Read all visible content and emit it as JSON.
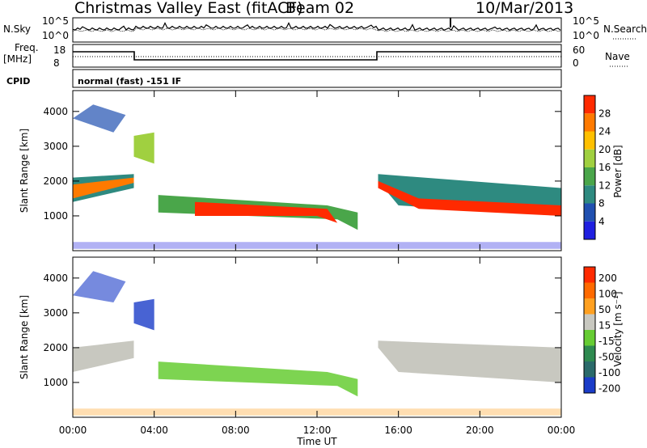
{
  "header": {
    "site_title": "Christmas Valley East (fitACF)",
    "beam_label": "Beam 02",
    "date": "10/Mar/2013"
  },
  "status_panels": {
    "nsky_label": "N.Sky",
    "nsearch_label": "N.Search",
    "noise_ticks": [
      "10^5",
      "10^0"
    ],
    "freq_label": "Freq.",
    "freq_unit": "[MHz]",
    "freq_ticks": [
      "18",
      "8"
    ],
    "nave_label": "Nave",
    "nave_ticks": [
      "60",
      "0"
    ],
    "cpid_label": "CPID",
    "cpid_value": "normal (fast) -151 IF"
  },
  "chart_data": [
    {
      "type": "heatmap",
      "name": "power",
      "ylabel": "Slant Range [km]",
      "yticks": [
        "4000",
        "3000",
        "2000",
        "1000"
      ],
      "xticks": [
        "00:00",
        "04:00",
        "08:00",
        "12:00",
        "16:00",
        "20:00",
        "00:00"
      ],
      "colorbar_label": "Power [dB]",
      "colorbar_ticks": [
        "28",
        "24",
        "20",
        "16",
        "12",
        "8",
        "4"
      ],
      "colors": [
        "#2020e0",
        "#2050b0",
        "#2e8a80",
        "#4aa64a",
        "#a0d040",
        "#ffc000",
        "#ff7a00",
        "#ff2a00"
      ]
    },
    {
      "type": "heatmap",
      "name": "velocity",
      "ylabel": "Slant Range [km]",
      "yticks": [
        "4000",
        "3000",
        "2000",
        "1000"
      ],
      "xticks": [
        "00:00",
        "04:00",
        "08:00",
        "12:00",
        "16:00",
        "20:00",
        "00:00"
      ],
      "xlabel": "Time UT",
      "colorbar_label": "Velocity [m s⁻¹]",
      "colorbar_ticks": [
        "200",
        "100",
        "50",
        "15",
        "-15",
        "-50",
        "-100",
        "-200"
      ],
      "colors": [
        "#1a3cc8",
        "#2a6a6a",
        "#2e8a50",
        "#66cc33",
        "#c8c8c0",
        "#ffa020",
        "#ff6a00",
        "#ff2a00",
        "#ee0000"
      ]
    }
  ]
}
